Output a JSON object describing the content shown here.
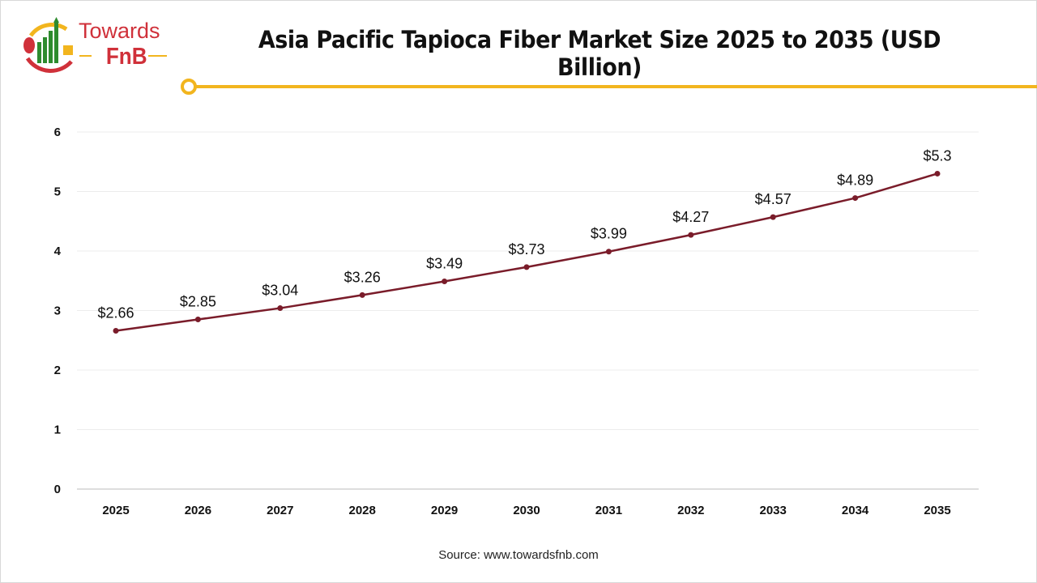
{
  "logo": {
    "line1": "Towards",
    "line2": "FnB"
  },
  "colors": {
    "line": "#7a1c2a",
    "accent": "#f2b51e",
    "logo_red": "#d0313a",
    "logo_green": "#2e8b2e"
  },
  "source": "Source: www.towardsfnb.com",
  "chart_data": {
    "type": "line",
    "title": "Asia Pacific Tapioca Fiber Market Size 2025 to 2035 (USD Billion)",
    "categories": [
      "2025",
      "2026",
      "2027",
      "2028",
      "2029",
      "2030",
      "2031",
      "2032",
      "2033",
      "2034",
      "2035"
    ],
    "values": [
      2.66,
      2.85,
      3.04,
      3.26,
      3.49,
      3.73,
      3.99,
      4.27,
      4.57,
      4.89,
      5.3
    ],
    "data_labels": [
      "$2.66",
      "$2.85",
      "$3.04",
      "$3.26",
      "$3.49",
      "$3.73",
      "$3.99",
      "$4.27",
      "$4.57",
      "$4.89",
      "$5.3"
    ],
    "y_ticks": [
      "0",
      "1",
      "2",
      "3",
      "4",
      "5",
      "6"
    ],
    "ylim": [
      0,
      6
    ],
    "grid": true,
    "legend": "none"
  }
}
